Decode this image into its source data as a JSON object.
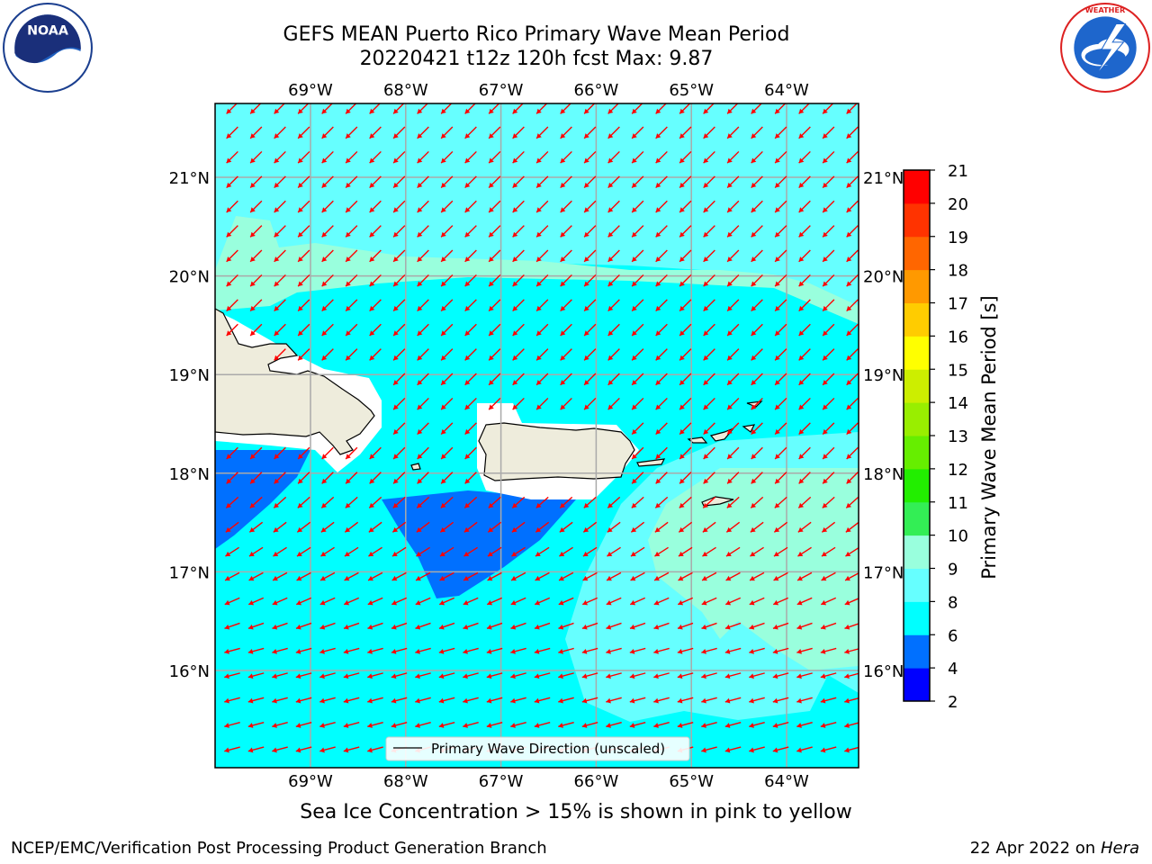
{
  "title": {
    "line1": "GEFS MEAN Puerto Rico Primary Wave Mean Period",
    "line2": "20220421 t12z 120h fcst   Max: 9.87"
  },
  "logos": {
    "left": {
      "icon": "noaa-logo",
      "text": "NOAA",
      "ring_text": "NATIONAL OCEANIC AND ATMOSPHERIC ADMINISTRATION · U.S. DEPARTMENT OF COMMERCE"
    },
    "right": {
      "icon": "nws-logo",
      "ring_text": "NATIONAL WEATHER SERVICE"
    }
  },
  "map": {
    "lon_labels": [
      "69°W",
      "68°W",
      "67°W",
      "66°W",
      "65°W",
      "64°W"
    ],
    "lat_labels": [
      "21°N",
      "20°N",
      "19°N",
      "18°N",
      "17°N",
      "16°N"
    ],
    "legend_label": "Primary Wave Direction (unscaled)",
    "arrow_color": "#ff0000",
    "land_color": "#eeecdc",
    "gridline_color": "#aaaaaa"
  },
  "colorbar": {
    "label": "Primary Wave Mean Period [s]",
    "ticks": [
      "2",
      "4",
      "6",
      "8",
      "9",
      "10",
      "11",
      "12",
      "13",
      "14",
      "15",
      "16",
      "17",
      "18",
      "19",
      "20",
      "21"
    ],
    "colors": [
      "#0000ff",
      "#0070ff",
      "#00ffff",
      "#66ffff",
      "#99ffdd",
      "#33ee55",
      "#22ee00",
      "#66ee00",
      "#99ee00",
      "#ccee00",
      "#ffff00",
      "#ffcc00",
      "#ff9900",
      "#ff6600",
      "#ff3300",
      "#ff0000"
    ]
  },
  "subtitle": "Sea Ice Concentration > 15% is shown in pink to yellow",
  "footer": {
    "left": "NCEP/EMC/Verification Post Processing Product Generation Branch",
    "right_date": "22 Apr 2022 on",
    "right_host": "Hera"
  }
}
